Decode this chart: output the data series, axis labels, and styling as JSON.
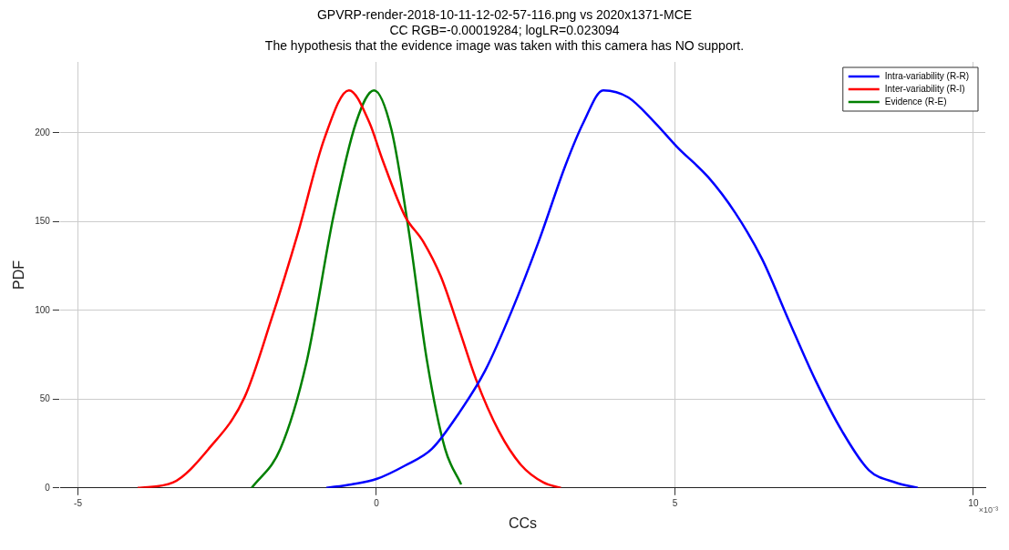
{
  "chart_data": {
    "type": "line",
    "title": "GPVRP-render-2018-10-11-12-02-57-116.png vs 2020x1371-MCE",
    "subtitle": "CC RGB=-0.00019284; logLR=0.023094",
    "annotations": [
      "The hypothesis that the evidence image was taken with this camera has NO support.",
      "×10⁻³"
    ],
    "xlabel": "CCs",
    "ylabel": "PDF",
    "xlim": [
      -5.3,
      10.2
    ],
    "xticks": [
      -5,
      0,
      5,
      10
    ],
    "ylim": [
      0,
      240
    ],
    "yticks": [
      0,
      50,
      100,
      150,
      200
    ],
    "grid": true,
    "legend": "top right",
    "marker": "none",
    "line_style": "solid",
    "series": [
      {
        "name": "Intra-variability (R-R)",
        "color": "#0000ff",
        "x": [
          -0.84,
          -0.42,
          0,
          0.48,
          0.93,
          1.38,
          1.82,
          2.27,
          2.72,
          3.17,
          3.47,
          3.8,
          4.22,
          4.66,
          5.04,
          5.56,
          6.01,
          6.46,
          6.9,
          7.35,
          7.8,
          8.25,
          8.7,
          9.07
        ],
        "values": [
          0,
          2,
          5,
          12.6,
          22,
          42,
          66,
          100,
          139,
          182,
          206,
          224,
          220,
          206,
          192,
          175,
          155,
          129,
          95,
          61,
          32,
          10,
          3,
          0
        ]
      },
      {
        "name": "Inter-variability (R-I)",
        "color": "#ff0000",
        "x": [
          -4,
          -3.41,
          -2.81,
          -2.21,
          -1.76,
          -1.32,
          -0.87,
          -0.46,
          -0.12,
          0.1,
          0.48,
          0.78,
          1.08,
          1.38,
          1.67,
          2.05,
          2.42,
          2.8,
          3.09
        ],
        "values": [
          0,
          3,
          22,
          51,
          95,
          143,
          197,
          224,
          206,
          185,
          153,
          139,
          119,
          90,
          61,
          32,
          13,
          3,
          0
        ]
      },
      {
        "name": "Evidence (R-E)",
        "color": "#008000",
        "x": [
          -2.09,
          -1.61,
          -1.17,
          -0.72,
          -0.34,
          -0.04,
          0.25,
          0.55,
          0.85,
          1.15,
          1.42
        ],
        "values": [
          0,
          22,
          71,
          153,
          206,
          224,
          202,
          143,
          71,
          22,
          2
        ]
      }
    ]
  }
}
